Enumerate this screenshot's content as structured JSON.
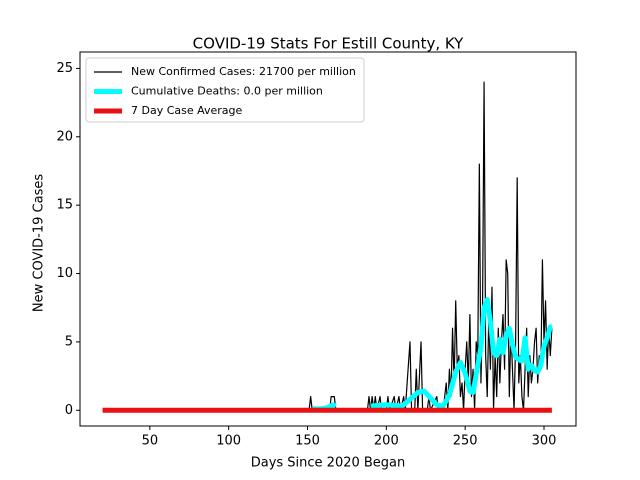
{
  "chart_data": {
    "type": "line",
    "title": "COVID-19 Stats For Estill County, KY",
    "x_label": "Days Since 2020 Began",
    "y_label": "New COVID-19 Cases",
    "xlim": [
      5.7,
      320.3
    ],
    "ylim": [
      -1.15,
      26.2
    ],
    "xticks": [
      50,
      100,
      150,
      200,
      250,
      300
    ],
    "yticks": [
      0,
      5,
      10,
      15,
      20,
      25
    ],
    "legend": "upper left",
    "series": [
      {
        "name": "New Confirmed Cases: 21700 per million",
        "color": "#000000",
        "linewidth": 1.2,
        "x": [
          20,
          151,
          152,
          153,
          164,
          165,
          167,
          168,
          188,
          189,
          190,
          191,
          192,
          193,
          194,
          196,
          197,
          200,
          201,
          202,
          205,
          206,
          208,
          209,
          211,
          212,
          215,
          216,
          218,
          219,
          220,
          222,
          223,
          226,
          227,
          228,
          232,
          233,
          236,
          238,
          239,
          240,
          241,
          242,
          243,
          244,
          245,
          246,
          247,
          248,
          249,
          250,
          251,
          252,
          253,
          254,
          255,
          256,
          257,
          258,
          259,
          260,
          261,
          262,
          263,
          264,
          265,
          266,
          267,
          268,
          269,
          270,
          271,
          272,
          273,
          274,
          275,
          276,
          277,
          278,
          279,
          280,
          281,
          282,
          283,
          284,
          285,
          286,
          287,
          288,
          289,
          290,
          291,
          292,
          293,
          294,
          295,
          296,
          297,
          298,
          299,
          300,
          301,
          302,
          303,
          304,
          305
        ],
        "values": [
          0,
          0,
          1,
          0,
          0,
          1,
          1,
          0,
          0,
          1,
          0,
          1,
          0,
          1,
          0,
          1,
          0,
          0,
          1,
          0,
          1,
          0,
          1,
          0,
          1,
          0,
          5,
          0,
          0,
          3,
          0,
          5,
          0,
          0,
          1,
          0,
          1,
          0,
          0,
          2,
          0,
          3,
          1,
          6,
          2,
          8,
          3,
          4,
          1,
          2,
          0,
          3,
          5,
          2,
          7,
          1,
          3,
          0,
          5,
          4,
          18,
          2,
          7,
          24,
          4,
          1,
          7,
          3,
          9,
          0,
          4,
          1,
          6,
          2,
          5,
          7,
          3,
          11,
          10,
          1,
          6,
          3,
          0,
          5,
          17,
          2,
          4,
          1,
          0,
          3,
          6,
          1,
          4,
          2,
          3,
          5,
          6,
          2,
          4,
          3,
          11,
          5,
          8,
          3,
          6,
          4,
          6
        ]
      },
      {
        "name": "Cumulative Deaths: 0.0 per million",
        "color": "#00ffff",
        "linewidth": 5,
        "x": [
          153,
          158,
          163,
          166,
          168,
          169,
          190,
          200,
          210,
          216,
          220,
          224,
          228,
          232,
          236,
          240,
          244,
          247,
          250,
          253,
          255,
          258,
          260,
          262,
          264,
          266,
          268,
          270,
          272,
          274,
          276,
          278,
          280,
          282,
          284,
          286,
          288,
          290,
          292,
          294,
          296,
          298,
          300,
          302,
          304,
          305
        ],
        "values": [
          0.1,
          0.1,
          0.2,
          0.4,
          0.3,
          null,
          0.3,
          0.4,
          0.3,
          0.9,
          1.3,
          1.4,
          0.9,
          0.4,
          0.3,
          1.1,
          2.8,
          3.5,
          2.7,
          1.4,
          1.3,
          3.3,
          4.6,
          7.5,
          8.1,
          6.5,
          4.2,
          4.0,
          5.2,
          4.2,
          5.5,
          6.0,
          4.8,
          3.9,
          3.7,
          3.6,
          5.3,
          3.0,
          3.3,
          2.9,
          2.8,
          3.3,
          4.7,
          5.3,
          6.1,
          6.1
        ]
      },
      {
        "name": "7 Day Case Average",
        "color": "#e81010",
        "linewidth": 5,
        "x": [
          20,
          305
        ],
        "values": [
          0,
          0
        ]
      }
    ]
  }
}
